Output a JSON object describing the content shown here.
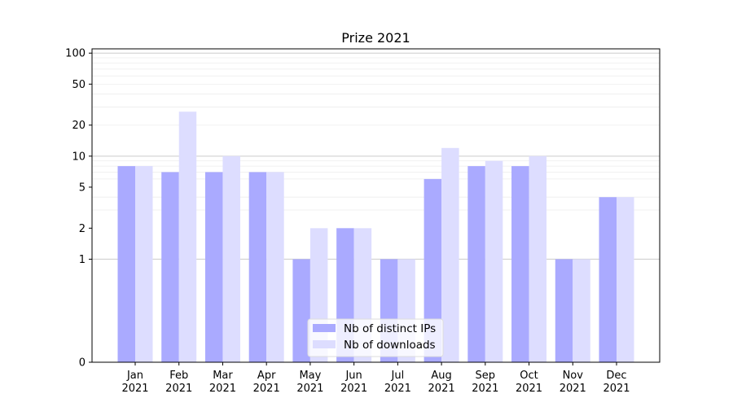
{
  "chart_data": {
    "type": "bar",
    "title": "Prize 2021",
    "categories": [
      "Jan\n2021",
      "Feb\n2021",
      "Mar\n2021",
      "Apr\n2021",
      "May\n2021",
      "Jun\n2021",
      "Jul\n2021",
      "Aug\n2021",
      "Sep\n2021",
      "Oct\n2021",
      "Nov\n2021",
      "Dec\n2021"
    ],
    "series": [
      {
        "name": "Nb of distinct IPs",
        "color": "#aaaaff",
        "values": [
          8,
          7,
          7,
          7,
          1,
          2,
          1,
          6,
          8,
          8,
          1,
          4
        ]
      },
      {
        "name": "Nb of downloads",
        "color": "#ddddff",
        "values": [
          8,
          27,
          10,
          7,
          2,
          2,
          1,
          12,
          9,
          10,
          1,
          4
        ]
      }
    ],
    "yscale": "symlog",
    "ylim": [
      0,
      110
    ],
    "yticks": [
      0,
      1,
      2,
      5,
      10,
      20,
      50,
      100
    ],
    "ytick_labels": [
      "0",
      "1",
      "2",
      "5",
      "10",
      "20",
      "50",
      "100"
    ],
    "xlabel": "",
    "ylabel": "",
    "grid": true,
    "legend_position": "lower-center"
  }
}
